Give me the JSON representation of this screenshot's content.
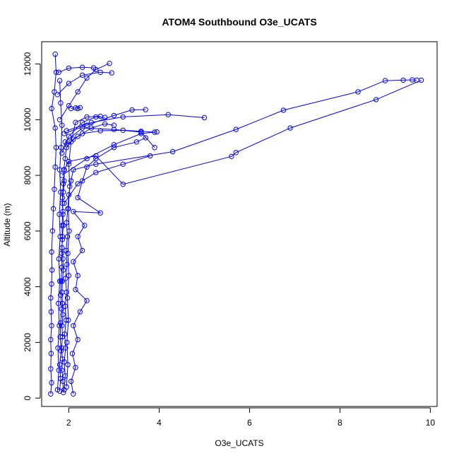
{
  "chart_data": {
    "type": "line",
    "title": "ATOM4 Southbound O3e_UCATS",
    "xlabel": "O3e_UCATS",
    "ylabel": "Altitude (m)",
    "xlim": [
      1.4,
      10.15
    ],
    "ylim": [
      -300,
      12800
    ],
    "x_ticks": [
      2,
      4,
      6,
      8,
      10
    ],
    "x_tick_labels": [
      "2",
      "4",
      "6",
      "8",
      "10"
    ],
    "y_ticks": [
      0,
      2000,
      4000,
      6000,
      8000,
      10000,
      12000
    ],
    "y_tick_labels": [
      "0",
      "2000",
      "4000",
      "6000",
      "8000",
      "10000",
      "12000"
    ],
    "grid": false,
    "marker": "open-circle",
    "series_color": "#0000ff",
    "series": [
      {
        "name": "",
        "points": [
          [
            1.88,
            200
          ],
          [
            1.87,
            600
          ],
          [
            1.85,
            1000
          ],
          [
            1.86,
            1400
          ],
          [
            1.84,
            1800
          ],
          [
            1.86,
            2200
          ],
          [
            1.85,
            2600
          ],
          [
            1.87,
            3000
          ],
          [
            1.86,
            3400
          ],
          [
            1.85,
            3800
          ],
          [
            1.86,
            4200
          ],
          [
            1.88,
            4600
          ],
          [
            1.87,
            5000
          ],
          [
            1.85,
            5400
          ],
          [
            1.86,
            5800
          ],
          [
            1.88,
            6200
          ],
          [
            1.87,
            6600
          ],
          [
            1.86,
            7000
          ],
          [
            1.88,
            7400
          ],
          [
            1.9,
            7800
          ],
          [
            1.89,
            8200
          ],
          [
            1.92,
            8600
          ],
          [
            1.95,
            9000
          ],
          [
            2.1,
            9300
          ],
          [
            2.3,
            9500
          ],
          [
            2.7,
            9600
          ],
          [
            3.2,
            9620
          ],
          [
            3.6,
            9580
          ],
          [
            3.9,
            9550
          ]
        ]
      },
      {
        "name": "",
        "points": [
          [
            1.8,
            250
          ],
          [
            1.82,
            700
          ],
          [
            1.8,
            1200
          ],
          [
            1.83,
            1700
          ],
          [
            1.81,
            2200
          ],
          [
            1.82,
            2700
          ],
          [
            1.84,
            3200
          ],
          [
            1.82,
            3700
          ],
          [
            1.83,
            4200
          ],
          [
            1.85,
            4700
          ],
          [
            1.84,
            5200
          ],
          [
            1.86,
            5700
          ],
          [
            1.85,
            6200
          ],
          [
            1.87,
            6700
          ],
          [
            1.86,
            7200
          ],
          [
            1.88,
            7700
          ],
          [
            1.9,
            8200
          ],
          [
            2.0,
            8500
          ],
          [
            2.6,
            8700
          ],
          [
            3.2,
            7680
          ],
          [
            5.6,
            8680
          ],
          [
            5.7,
            8820
          ],
          [
            6.9,
            9700
          ],
          [
            8.8,
            10720
          ],
          [
            9.8,
            11420
          ]
        ]
      },
      {
        "name": "",
        "points": [
          [
            1.9,
            300
          ],
          [
            1.92,
            800
          ],
          [
            1.9,
            1300
          ],
          [
            1.93,
            1800
          ],
          [
            1.91,
            2300
          ],
          [
            1.94,
            2800
          ],
          [
            1.92,
            3300
          ],
          [
            1.95,
            3800
          ],
          [
            1.93,
            4300
          ],
          [
            1.96,
            4800
          ],
          [
            1.94,
            5300
          ],
          [
            1.97,
            5800
          ],
          [
            1.95,
            6300
          ],
          [
            1.98,
            6800
          ],
          [
            2.0,
            7300
          ],
          [
            2.05,
            7800
          ],
          [
            2.1,
            8200
          ],
          [
            2.6,
            8400
          ],
          [
            4.3,
            8850
          ],
          [
            5.7,
            9650
          ],
          [
            6.75,
            10340
          ],
          [
            8.4,
            11000
          ],
          [
            9.0,
            11400
          ],
          [
            9.4,
            11420
          ],
          [
            9.6,
            11430
          ],
          [
            9.7,
            11420
          ]
        ]
      },
      {
        "name": "",
        "points": [
          [
            1.6,
            150
          ],
          [
            1.62,
            550
          ],
          [
            1.6,
            1050
          ],
          [
            1.61,
            1600
          ],
          [
            1.6,
            2100
          ],
          [
            1.62,
            2600
          ],
          [
            1.61,
            3100
          ],
          [
            1.6,
            3600
          ],
          [
            1.62,
            4100
          ],
          [
            1.63,
            4600
          ],
          [
            1.62,
            5250
          ],
          [
            1.64,
            6000
          ],
          [
            1.66,
            6800
          ],
          [
            1.68,
            7500
          ],
          [
            1.7,
            8300
          ],
          [
            1.72,
            9000
          ],
          [
            1.7,
            9700
          ],
          [
            1.62,
            10400
          ],
          [
            1.68,
            11000
          ],
          [
            1.72,
            11700
          ],
          [
            1.7,
            12350
          ]
        ]
      },
      {
        "name": "",
        "points": [
          [
            2.1,
            150
          ],
          [
            2.05,
            600
          ],
          [
            2.15,
            1100
          ],
          [
            2.08,
            1600
          ],
          [
            2.2,
            2100
          ],
          [
            2.1,
            2600
          ],
          [
            2.25,
            3100
          ],
          [
            2.4,
            3500
          ],
          [
            2.15,
            3900
          ],
          [
            2.2,
            4400
          ],
          [
            2.1,
            4900
          ],
          [
            2.3,
            5300
          ],
          [
            2.2,
            5800
          ],
          [
            2.35,
            6200
          ],
          [
            2.1,
            6700
          ],
          [
            2.7,
            6650
          ],
          [
            2.2,
            7200
          ],
          [
            2.3,
            7800
          ],
          [
            2.4,
            8300
          ],
          [
            2.6,
            8600
          ],
          [
            3.0,
            9000
          ],
          [
            3.5,
            9200
          ],
          [
            3.7,
            9350
          ]
        ]
      },
      {
        "name": "",
        "points": [
          [
            1.95,
            9100
          ],
          [
            2.2,
            9400
          ],
          [
            2.5,
            9700
          ],
          [
            2.8,
            9850
          ],
          [
            3.0,
            9800
          ]
        ]
      },
      {
        "name": "",
        "points": [
          [
            1.85,
            8800
          ],
          [
            2.0,
            9400
          ],
          [
            2.3,
            9900
          ],
          [
            2.6,
            10100
          ],
          [
            2.8,
            10080
          ]
        ]
      },
      {
        "name": "",
        "points": [
          [
            1.9,
            9500
          ],
          [
            2.4,
            9800
          ],
          [
            3.0,
            10150
          ],
          [
            3.4,
            10350
          ],
          [
            3.7,
            10360
          ]
        ]
      },
      {
        "name": "",
        "points": [
          [
            1.95,
            9600
          ],
          [
            2.5,
            9900
          ],
          [
            3.2,
            10100
          ],
          [
            4.2,
            10180
          ],
          [
            5.0,
            10070
          ]
        ]
      },
      {
        "name": "",
        "points": [
          [
            1.8,
            10000
          ],
          [
            2.0,
            10500
          ],
          [
            2.2,
            11000
          ],
          [
            2.4,
            11500
          ],
          [
            2.6,
            11800
          ],
          [
            2.9,
            12020
          ]
        ]
      },
      {
        "name": "",
        "points": [
          [
            1.75,
            10900
          ],
          [
            2.0,
            11300
          ],
          [
            2.3,
            11600
          ],
          [
            2.7,
            11700
          ],
          [
            2.95,
            11680
          ]
        ]
      },
      {
        "name": "",
        "points": [
          [
            1.78,
            11700
          ],
          [
            2.0,
            11850
          ],
          [
            2.3,
            11880
          ],
          [
            2.55,
            11860
          ]
        ]
      },
      {
        "name": "",
        "points": [
          [
            1.9,
            7000
          ],
          [
            2.2,
            7700
          ],
          [
            2.6,
            8100
          ],
          [
            3.2,
            8400
          ],
          [
            3.8,
            8700
          ]
        ]
      },
      {
        "name": "",
        "points": [
          [
            1.85,
            8000
          ],
          [
            2.4,
            8600
          ],
          [
            3.0,
            9100
          ],
          [
            3.6,
            9500
          ],
          [
            3.95,
            9560
          ]
        ]
      },
      {
        "name": "",
        "points": [
          [
            1.92,
            9200
          ],
          [
            2.3,
            9700
          ],
          [
            3.0,
            9650
          ],
          [
            3.6,
            9550
          ],
          [
            3.9,
            9000
          ]
        ]
      },
      {
        "name": "",
        "points": [
          [
            2.05,
            10400
          ],
          [
            2.15,
            10420
          ],
          [
            2.25,
            10430
          ],
          [
            2.2,
            10400
          ]
        ]
      },
      {
        "name": "",
        "points": [
          [
            1.95,
            400
          ],
          [
            1.98,
            1200
          ],
          [
            1.96,
            2000
          ],
          [
            1.99,
            2800
          ],
          [
            1.97,
            3600
          ],
          [
            2.0,
            4400
          ],
          [
            1.98,
            5200
          ],
          [
            2.01,
            6000
          ],
          [
            1.99,
            6800
          ],
          [
            2.02,
            7600
          ],
          [
            2.0,
            8400
          ],
          [
            2.05,
            9200
          ],
          [
            2.15,
            9900
          ],
          [
            2.4,
            10100
          ],
          [
            2.7,
            10120
          ]
        ]
      },
      {
        "name": "",
        "points": [
          [
            1.75,
            300
          ],
          [
            1.78,
            1000
          ],
          [
            1.76,
            1800
          ],
          [
            1.79,
            2600
          ],
          [
            1.77,
            3400
          ],
          [
            1.8,
            4200
          ],
          [
            1.78,
            5000
          ],
          [
            1.81,
            5800
          ],
          [
            1.79,
            6600
          ],
          [
            1.82,
            7400
          ],
          [
            1.8,
            8200
          ],
          [
            1.83,
            9000
          ],
          [
            1.85,
            9800
          ],
          [
            1.82,
            10600
          ],
          [
            1.8,
            11400
          ]
        ]
      }
    ]
  }
}
